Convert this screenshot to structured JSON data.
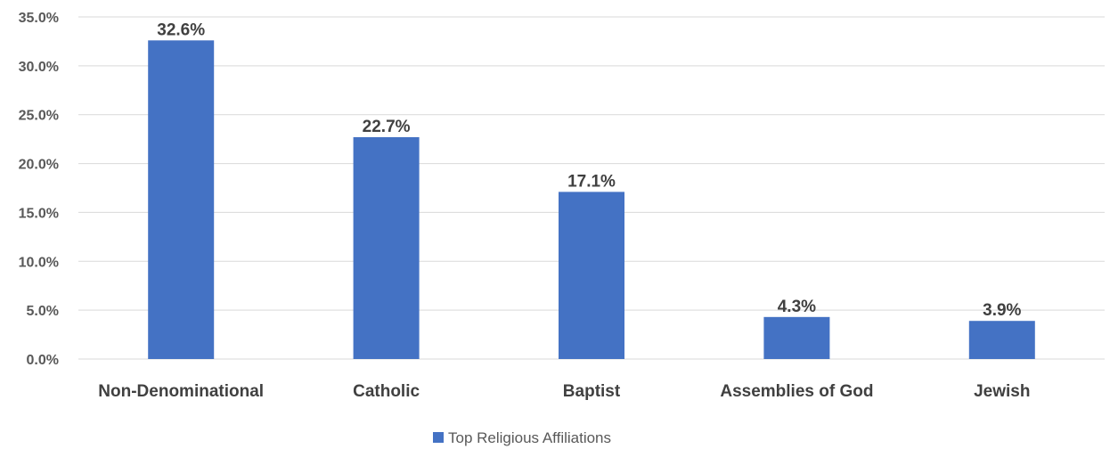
{
  "chart_data": {
    "type": "bar",
    "categories": [
      "Non-Denominational",
      "Catholic",
      "Baptist",
      "Assemblies of God",
      "Jewish"
    ],
    "series": [
      {
        "name": "Top Religious Affiliations",
        "values": [
          32.6,
          22.7,
          17.1,
          4.3,
          3.9
        ]
      }
    ],
    "data_labels": [
      "32.6%",
      "22.7%",
      "17.1%",
      "4.3%",
      "3.9%"
    ],
    "y_ticks": [
      "0.0%",
      "5.0%",
      "10.0%",
      "15.0%",
      "20.0%",
      "25.0%",
      "30.0%",
      "35.0%"
    ],
    "ylim": [
      0,
      35
    ],
    "title": "",
    "xlabel": "",
    "ylabel": "",
    "grid": true,
    "legend_position": "bottom",
    "colors": {
      "bar": "#4472C4",
      "grid": "#D9D9D9"
    }
  }
}
